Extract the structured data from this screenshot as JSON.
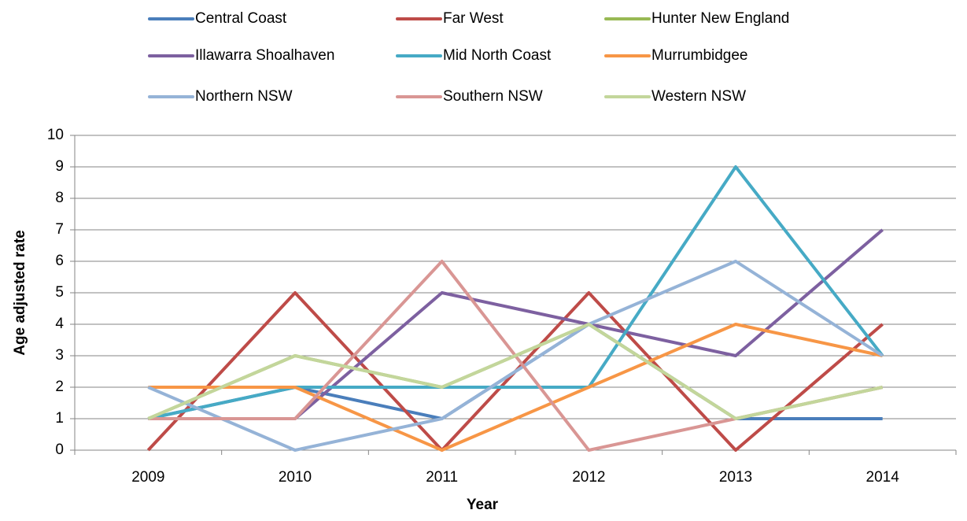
{
  "chart_data": {
    "type": "line",
    "x_label": "Year",
    "y_label": "Age adjusted rate",
    "categories": [
      "2009",
      "2010",
      "2011",
      "2012",
      "2013",
      "2014"
    ],
    "ylim": [
      0,
      10
    ],
    "yticks": [
      0,
      1,
      2,
      3,
      4,
      5,
      6,
      7,
      8,
      9,
      10
    ],
    "grid": true,
    "series": [
      {
        "name": "Central Coast",
        "color": "#4a7ebb",
        "values": [
          1,
          2,
          1,
          4,
          1,
          1
        ]
      },
      {
        "name": "Far West",
        "color": "#be4b48",
        "values": [
          0,
          5,
          0,
          5,
          0,
          4
        ]
      },
      {
        "name": "Hunter New England",
        "color": "#98b954",
        "values": [
          1,
          3,
          2,
          4,
          1,
          2
        ]
      },
      {
        "name": "Illawarra Shoalhaven",
        "color": "#7d60a0",
        "values": [
          1,
          1,
          5,
          4,
          3,
          7
        ]
      },
      {
        "name": "Mid North Coast",
        "color": "#46aac5",
        "values": [
          1,
          2,
          2,
          2,
          9,
          3
        ]
      },
      {
        "name": "Murrumbidgee",
        "color": "#f79646",
        "values": [
          2,
          2,
          0,
          2,
          4,
          3
        ]
      },
      {
        "name": "Northern NSW",
        "color": "#95b3d7",
        "values": [
          2,
          0,
          1,
          4,
          6,
          3
        ]
      },
      {
        "name": "Southern NSW",
        "color": "#d99694",
        "values": [
          1,
          1,
          6,
          0,
          1,
          2
        ]
      },
      {
        "name": "Western NSW",
        "color": "#c3d69b",
        "values": [
          1,
          3,
          2,
          4,
          1,
          2
        ]
      }
    ]
  }
}
